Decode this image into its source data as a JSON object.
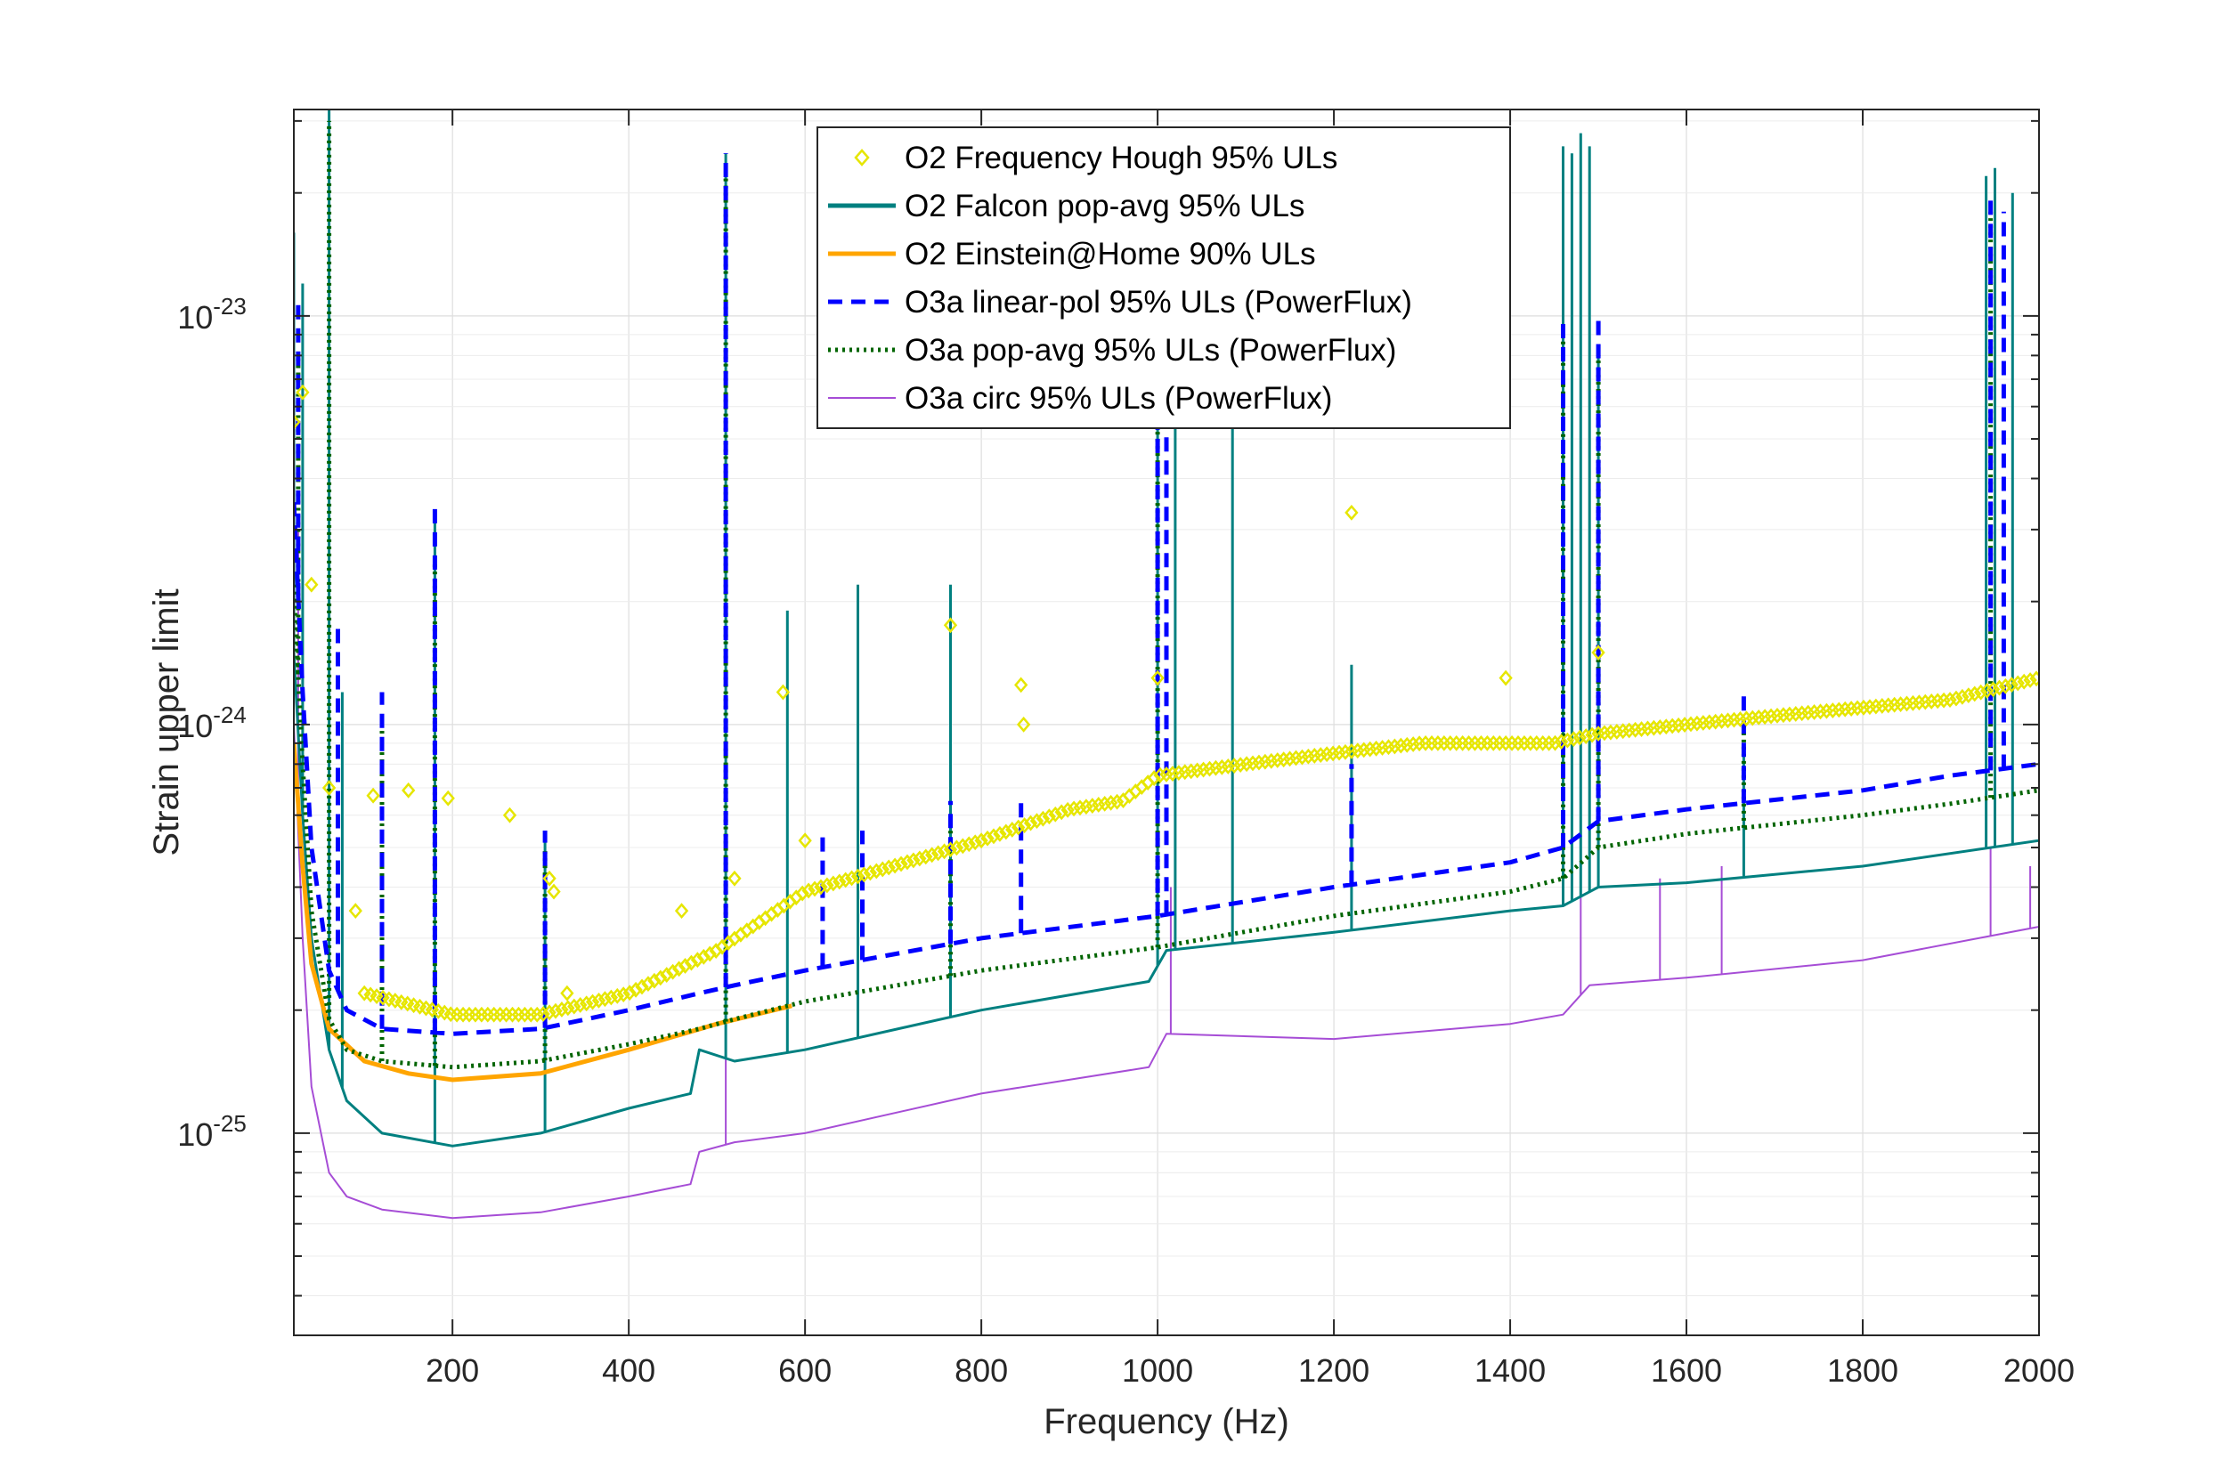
{
  "chart_data": {
    "type": "line",
    "title": "",
    "xlabel": "Frequency (Hz)",
    "ylabel": "Strain upper limit",
    "xlim": [
      20,
      2000
    ],
    "ylim": [
      3.2e-26,
      3.2e-23
    ],
    "yscale": "log",
    "grid": true,
    "legend_position": "top-center",
    "x_ticks": [
      200,
      400,
      600,
      800,
      1000,
      1200,
      1400,
      1600,
      1800,
      2000
    ],
    "x_tick_labels": [
      "200",
      "400",
      "600",
      "800",
      "1000",
      "1200",
      "1400",
      "1600",
      "1800",
      "2000"
    ],
    "y_ticks": [
      1e-25,
      1e-24,
      1e-23
    ],
    "y_tick_labels": [
      {
        "base": "10",
        "exp": "-25"
      },
      {
        "base": "10",
        "exp": "-24"
      },
      {
        "base": "10",
        "exp": "-23"
      }
    ],
    "series": [
      {
        "name": "O2 Frequency Hough 95% ULs",
        "style": "markers",
        "color": "#e6e600",
        "points": [
          [
            20,
            5.5e-24
          ],
          [
            30,
            6.5e-24
          ],
          [
            40,
            2.2e-24
          ],
          [
            60,
            7e-25
          ],
          [
            90,
            3.5e-25
          ],
          [
            110,
            6.7e-25
          ],
          [
            150,
            6.9e-25
          ],
          [
            195,
            6.6e-25
          ],
          [
            265,
            6e-25
          ],
          [
            310,
            4.2e-25
          ],
          [
            315,
            3.9e-25
          ],
          [
            330,
            2.2e-25
          ],
          [
            460,
            3.5e-25
          ],
          [
            520,
            4.2e-25
          ],
          [
            575,
            1.2e-24
          ],
          [
            600,
            5.2e-25
          ],
          [
            765,
            1.75e-24
          ],
          [
            845,
            1.25e-24
          ],
          [
            848,
            1e-24
          ],
          [
            1000,
            1.3e-24
          ],
          [
            1220,
            3.3e-24
          ],
          [
            1395,
            1.3e-24
          ],
          [
            1500,
            1.5e-24
          ]
        ],
        "trend": [
          [
            100,
            2.2e-25
          ],
          [
            200,
            1.95e-25
          ],
          [
            300,
            1.95e-25
          ],
          [
            400,
            2.2e-25
          ],
          [
            500,
            2.8e-25
          ],
          [
            600,
            3.9e-25
          ],
          [
            700,
            4.5e-25
          ],
          [
            800,
            5.2e-25
          ],
          [
            900,
            6.2e-25
          ],
          [
            960,
            6.5e-25
          ],
          [
            1000,
            7.5e-25
          ],
          [
            1100,
            8e-25
          ],
          [
            1200,
            8.5e-25
          ],
          [
            1300,
            9e-25
          ],
          [
            1450,
            9e-25
          ],
          [
            1500,
            9.5e-25
          ],
          [
            1600,
            1e-24
          ],
          [
            1700,
            1.05e-24
          ],
          [
            1800,
            1.1e-24
          ],
          [
            1900,
            1.15e-24
          ],
          [
            2000,
            1.3e-24
          ]
        ]
      },
      {
        "name": "O2 Falcon pop-avg 95% ULs",
        "style": "solid",
        "color": "#008080",
        "baseline": [
          [
            20,
            1.5e-24
          ],
          [
            30,
            6e-25
          ],
          [
            40,
            3e-25
          ],
          [
            60,
            1.6e-25
          ],
          [
            80,
            1.2e-25
          ],
          [
            120,
            1e-25
          ],
          [
            200,
            9.3e-26
          ],
          [
            300,
            1e-25
          ],
          [
            400,
            1.15e-25
          ],
          [
            470,
            1.25e-25
          ],
          [
            480,
            1.6e-25
          ],
          [
            520,
            1.5e-25
          ],
          [
            600,
            1.6e-25
          ],
          [
            800,
            2e-25
          ],
          [
            990,
            2.35e-25
          ],
          [
            1010,
            2.8e-25
          ],
          [
            1200,
            3.1e-25
          ],
          [
            1400,
            3.5e-25
          ],
          [
            1460,
            3.6e-25
          ],
          [
            1500,
            4e-25
          ],
          [
            1600,
            4.1e-25
          ],
          [
            1800,
            4.5e-25
          ],
          [
            2000,
            5.2e-25
          ]
        ],
        "spikes": [
          [
            20,
            1.6e-23
          ],
          [
            30,
            1.2e-23
          ],
          [
            60,
            3.2e-23
          ],
          [
            75,
            1.2e-24
          ],
          [
            180,
            3.3e-24
          ],
          [
            305,
            5.5e-25
          ],
          [
            510,
            2.5e-23
          ],
          [
            580,
            1.9e-24
          ],
          [
            660,
            2.2e-24
          ],
          [
            765,
            2.2e-24
          ],
          [
            1000,
            2e-23
          ],
          [
            1020,
            1.5e-23
          ],
          [
            1085,
            6.5e-24
          ],
          [
            1220,
            1.4e-24
          ],
          [
            1460,
            2.6e-23
          ],
          [
            1470,
            2.5e-23
          ],
          [
            1480,
            2.8e-23
          ],
          [
            1490,
            2.6e-23
          ],
          [
            1500,
            8e-24
          ],
          [
            1665,
            9e-25
          ],
          [
            1940,
            2.2e-23
          ],
          [
            1950,
            2.3e-23
          ],
          [
            1970,
            2e-23
          ]
        ]
      },
      {
        "name": "O2 Einstein@Home 90% ULs",
        "style": "solid",
        "color": "#ffa500",
        "points": [
          [
            20,
            9e-25
          ],
          [
            30,
            4.5e-25
          ],
          [
            40,
            2.6e-25
          ],
          [
            60,
            1.8e-25
          ],
          [
            100,
            1.5e-25
          ],
          [
            150,
            1.4e-25
          ],
          [
            200,
            1.35e-25
          ],
          [
            300,
            1.4e-25
          ],
          [
            400,
            1.6e-25
          ],
          [
            500,
            1.85e-25
          ],
          [
            585,
            2.05e-25
          ]
        ]
      },
      {
        "name": "O3a linear-pol 95% ULs (PowerFlux)",
        "style": "dashed",
        "color": "#0000ff",
        "baseline": [
          [
            20,
            3.5e-24
          ],
          [
            30,
            1.2e-24
          ],
          [
            40,
            5e-25
          ],
          [
            60,
            2.5e-25
          ],
          [
            80,
            2e-25
          ],
          [
            120,
            1.8e-25
          ],
          [
            200,
            1.75e-25
          ],
          [
            300,
            1.8e-25
          ],
          [
            400,
            2e-25
          ],
          [
            480,
            2.2e-25
          ],
          [
            520,
            2.3e-25
          ],
          [
            600,
            2.5e-25
          ],
          [
            800,
            3e-25
          ],
          [
            1000,
            3.4e-25
          ],
          [
            1200,
            4e-25
          ],
          [
            1400,
            4.6e-25
          ],
          [
            1460,
            5e-25
          ],
          [
            1500,
            5.8e-25
          ],
          [
            1600,
            6.2e-25
          ],
          [
            1800,
            6.9e-25
          ],
          [
            1900,
            7.5e-25
          ],
          [
            2000,
            8e-25
          ]
        ],
        "spikes": [
          [
            25,
            1.1e-23
          ],
          [
            70,
            1.8e-24
          ],
          [
            120,
            1.2e-24
          ],
          [
            180,
            3.4e-24
          ],
          [
            305,
            5.5e-25
          ],
          [
            510,
            2.5e-23
          ],
          [
            620,
            5.5e-25
          ],
          [
            665,
            5.5e-25
          ],
          [
            765,
            6.5e-25
          ],
          [
            845,
            6.5e-25
          ],
          [
            1000,
            1.2e-23
          ],
          [
            1010,
            1.2e-23
          ],
          [
            1220,
            8e-25
          ],
          [
            1460,
            1e-23
          ],
          [
            1500,
            1e-23
          ],
          [
            1665,
            1.2e-24
          ],
          [
            1945,
            2e-23
          ],
          [
            1960,
            1.8e-23
          ]
        ]
      },
      {
        "name": "O3a pop-avg 95% ULs (PowerFlux)",
        "style": "dotted",
        "color": "#006400",
        "baseline": [
          [
            20,
            2.2e-24
          ],
          [
            30,
            8e-25
          ],
          [
            40,
            3.5e-25
          ],
          [
            60,
            1.9e-25
          ],
          [
            80,
            1.6e-25
          ],
          [
            120,
            1.5e-25
          ],
          [
            200,
            1.45e-25
          ],
          [
            300,
            1.5e-25
          ],
          [
            400,
            1.65e-25
          ],
          [
            480,
            1.8e-25
          ],
          [
            520,
            1.9e-25
          ],
          [
            600,
            2.1e-25
          ],
          [
            800,
            2.5e-25
          ],
          [
            1000,
            2.85e-25
          ],
          [
            1200,
            3.4e-25
          ],
          [
            1400,
            3.9e-25
          ],
          [
            1460,
            4.2e-25
          ],
          [
            1500,
            5e-25
          ],
          [
            1600,
            5.4e-25
          ],
          [
            1800,
            6e-25
          ],
          [
            1900,
            6.4e-25
          ],
          [
            2000,
            6.9e-25
          ]
        ],
        "spikes": [
          [
            25,
            8e-24
          ],
          [
            60,
            3e-23
          ],
          [
            120,
            1e-24
          ],
          [
            180,
            2.5e-24
          ],
          [
            305,
            5e-25
          ],
          [
            510,
            2.2e-23
          ],
          [
            765,
            5.5e-25
          ],
          [
            1000,
            1e-23
          ],
          [
            1460,
            9e-24
          ],
          [
            1500,
            8e-24
          ],
          [
            1665,
            1e-24
          ],
          [
            1945,
            1.8e-23
          ]
        ]
      },
      {
        "name": "O3a circ 95% ULs (PowerFlux)",
        "style": "solid",
        "color": "#a64dd6",
        "baseline": [
          [
            20,
            1e-24
          ],
          [
            30,
            3e-25
          ],
          [
            40,
            1.3e-25
          ],
          [
            60,
            8e-26
          ],
          [
            80,
            7e-26
          ],
          [
            120,
            6.5e-26
          ],
          [
            200,
            6.2e-26
          ],
          [
            300,
            6.4e-26
          ],
          [
            400,
            7e-26
          ],
          [
            470,
            7.5e-26
          ],
          [
            480,
            9e-26
          ],
          [
            520,
            9.5e-26
          ],
          [
            600,
            1e-25
          ],
          [
            800,
            1.25e-25
          ],
          [
            990,
            1.45e-25
          ],
          [
            1010,
            1.75e-25
          ],
          [
            1200,
            1.7e-25
          ],
          [
            1400,
            1.85e-25
          ],
          [
            1460,
            1.95e-25
          ],
          [
            1490,
            2.3e-25
          ],
          [
            1600,
            2.4e-25
          ],
          [
            1800,
            2.65e-25
          ],
          [
            2000,
            3.2e-25
          ]
        ],
        "spikes": [
          [
            25,
            3e-24
          ],
          [
            510,
            2.5e-24
          ],
          [
            1015,
            4e-25
          ],
          [
            1480,
            4.5e-25
          ],
          [
            1570,
            4.2e-25
          ],
          [
            1640,
            4.5e-25
          ],
          [
            1945,
            5e-25
          ],
          [
            1990,
            4.5e-25
          ]
        ]
      }
    ]
  }
}
